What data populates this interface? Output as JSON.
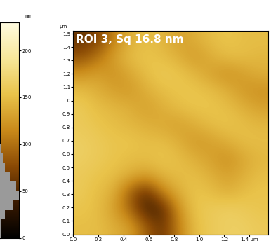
{
  "chart_data": {
    "type": "heatmap",
    "title": "ROI 3, Sq 16.8 nm",
    "y_unit": "µm",
    "color_unit": "nm",
    "xlim": [
      0,
      1.55
    ],
    "ylim": [
      0,
      1.52
    ],
    "xticks": [
      0.0,
      0.2,
      0.4,
      0.6,
      0.8,
      1.0,
      1.2,
      {
        "value": 1.4,
        "label": "1.4 µm"
      }
    ],
    "yticks": [
      0.0,
      0.1,
      0.2,
      0.3,
      0.4,
      0.5,
      0.6,
      0.7,
      0.8,
      0.9,
      1.0,
      1.1,
      1.2,
      1.3,
      1.4,
      1.5
    ],
    "color_range": [
      0,
      230
    ],
    "color_ticks": [
      0,
      50,
      100,
      150,
      200
    ],
    "histogram": {
      "bins": [
        0,
        10,
        20,
        30,
        40,
        50,
        60,
        70,
        80,
        90,
        100
      ],
      "counts": [
        2,
        5,
        15,
        40,
        60,
        50,
        30,
        15,
        8,
        4
      ]
    },
    "cells": [
      [
        150,
        150,
        140,
        130,
        90,
        60,
        110,
        150,
        160,
        165,
        165,
        160
      ],
      [
        155,
        150,
        130,
        95,
        45,
        50,
        120,
        155,
        160,
        165,
        160,
        155
      ],
      [
        160,
        150,
        140,
        90,
        55,
        110,
        140,
        155,
        150,
        140,
        150,
        155
      ],
      [
        160,
        155,
        150,
        140,
        130,
        145,
        150,
        150,
        140,
        130,
        140,
        150
      ],
      [
        165,
        160,
        155,
        150,
        150,
        155,
        150,
        140,
        130,
        120,
        135,
        145
      ],
      [
        165,
        160,
        155,
        155,
        150,
        150,
        140,
        125,
        130,
        140,
        150,
        150
      ],
      [
        160,
        155,
        150,
        145,
        140,
        135,
        130,
        140,
        150,
        155,
        150,
        145
      ],
      [
        160,
        150,
        145,
        140,
        130,
        140,
        150,
        155,
        155,
        150,
        140,
        130
      ],
      [
        150,
        140,
        130,
        125,
        140,
        150,
        155,
        155,
        150,
        140,
        125,
        120
      ],
      [
        120,
        130,
        120,
        135,
        150,
        160,
        155,
        145,
        130,
        120,
        130,
        140
      ],
      [
        80,
        100,
        130,
        150,
        155,
        150,
        140,
        125,
        140,
        150,
        150,
        145
      ],
      [
        60,
        70,
        110,
        140,
        150,
        145,
        130,
        140,
        150,
        155,
        150,
        150
      ]
    ]
  }
}
